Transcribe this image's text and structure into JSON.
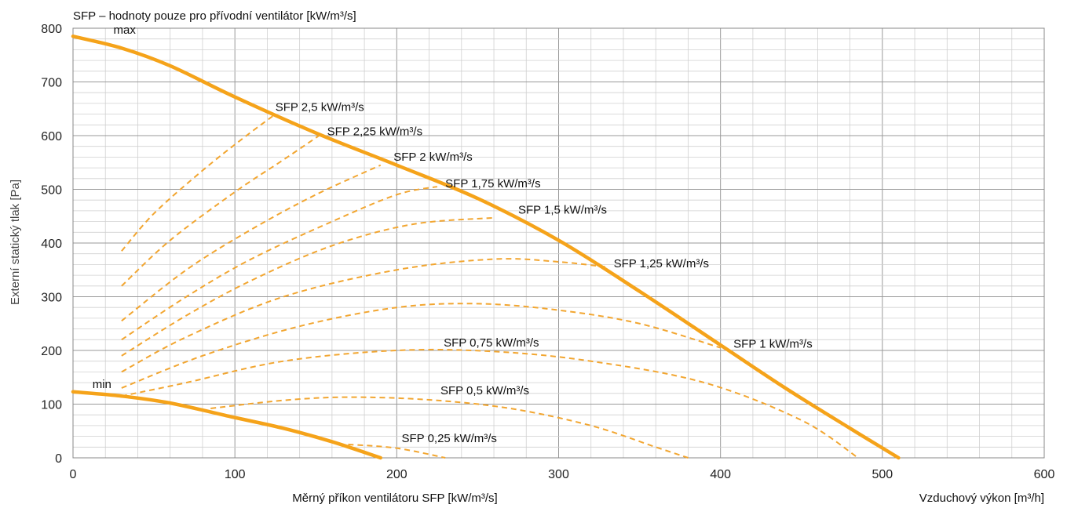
{
  "chart_data": {
    "type": "line",
    "title": "SFP – hodnoty pouze pro přívodní ventilátor [kW/m³/s]",
    "xlabel": "Měrný příkon ventilátoru SFP [kW/m³/s]",
    "xlabel_right": "Vzduchový výkon [m³/h]",
    "ylabel": "Externí statický tlak [Pa]",
    "xlim": [
      0,
      600
    ],
    "ylim": [
      0,
      800
    ],
    "x_ticks": [
      0,
      100,
      200,
      300,
      400,
      500,
      600
    ],
    "y_ticks": [
      0,
      100,
      200,
      300,
      400,
      500,
      600,
      700,
      800
    ],
    "minor_grid_x": 20,
    "minor_grid_y": 20,
    "grid": true,
    "colors": {
      "curve": "#F5A31A",
      "dashed": "#F2A631",
      "grid_major": "#999999",
      "grid_minor": "#d0d0d0"
    },
    "series": [
      {
        "name": "max",
        "style": "solid",
        "label_at": [
          25,
          790
        ],
        "points": [
          [
            0,
            785
          ],
          [
            30,
            763
          ],
          [
            60,
            730
          ],
          [
            100,
            672
          ],
          [
            150,
            605
          ],
          [
            200,
            545
          ],
          [
            250,
            483
          ],
          [
            300,
            405
          ],
          [
            350,
            310
          ],
          [
            400,
            210
          ],
          [
            440,
            130
          ],
          [
            480,
            55
          ],
          [
            510,
            0
          ]
        ]
      },
      {
        "name": "min",
        "style": "solid",
        "label_at": [
          12,
          130
        ],
        "points": [
          [
            0,
            123
          ],
          [
            30,
            115
          ],
          [
            60,
            102
          ],
          [
            100,
            75
          ],
          [
            130,
            55
          ],
          [
            160,
            30
          ],
          [
            190,
            0
          ]
        ]
      }
    ],
    "sfp_curves": [
      {
        "label": "SFP 2,5 kW/m³/s",
        "label_at": [
          125,
          646
        ],
        "points": [
          [
            30,
            385
          ],
          [
            50,
            455
          ],
          [
            80,
            535
          ],
          [
            105,
            595
          ],
          [
            125,
            640
          ]
        ]
      },
      {
        "label": "SFP 2,25 kW/m³/s",
        "label_at": [
          157,
          601
        ],
        "points": [
          [
            30,
            320
          ],
          [
            60,
            405
          ],
          [
            100,
            495
          ],
          [
            130,
            555
          ],
          [
            152,
            600
          ]
        ]
      },
      {
        "label": "SFP 2 kW/m³/s",
        "label_at": [
          198,
          553
        ],
        "points": [
          [
            30,
            255
          ],
          [
            70,
            350
          ],
          [
            110,
            425
          ],
          [
            150,
            490
          ],
          [
            190,
            545
          ]
        ]
      },
      {
        "label": "SFP 1,75 kW/m³/s",
        "label_at": [
          230,
          504
        ],
        "points": [
          [
            30,
            220
          ],
          [
            70,
            300
          ],
          [
            110,
            370
          ],
          [
            160,
            440
          ],
          [
            200,
            490
          ],
          [
            225,
            505
          ]
        ]
      },
      {
        "label": "SFP 1,5 kW/m³/s",
        "label_at": [
          275,
          455
        ],
        "points": [
          [
            30,
            190
          ],
          [
            70,
            265
          ],
          [
            110,
            330
          ],
          [
            160,
            395
          ],
          [
            210,
            435
          ],
          [
            260,
            447
          ]
        ]
      },
      {
        "label": "SFP 1,25 kW/m³/s",
        "label_at": [
          334,
          355
        ],
        "points": [
          [
            30,
            160
          ],
          [
            70,
            225
          ],
          [
            130,
            300
          ],
          [
            200,
            350
          ],
          [
            260,
            370
          ],
          [
            300,
            365
          ],
          [
            330,
            355
          ]
        ]
      },
      {
        "label": "SFP 1 kW/m³/s",
        "label_at": [
          408,
          205
        ],
        "points": [
          [
            30,
            130
          ],
          [
            80,
            190
          ],
          [
            140,
            245
          ],
          [
            200,
            280
          ],
          [
            250,
            287
          ],
          [
            300,
            275
          ],
          [
            350,
            250
          ],
          [
            400,
            205
          ]
        ]
      },
      {
        "label": "SFP 0,75 kW/m³/s",
        "label_at": [
          229,
          207
        ],
        "points": [
          [
            30,
            115
          ],
          [
            70,
            140
          ],
          [
            130,
            180
          ],
          [
            200,
            200
          ],
          [
            260,
            198
          ],
          [
            320,
            180
          ],
          [
            390,
            140
          ],
          [
            450,
            70
          ],
          [
            485,
            0
          ]
        ]
      },
      {
        "label": "SFP 0,5 kW/m³/s",
        "label_at": [
          227,
          118
        ],
        "points": [
          [
            85,
            92
          ],
          [
            130,
            107
          ],
          [
            170,
            113
          ],
          [
            220,
            108
          ],
          [
            270,
            92
          ],
          [
            320,
            60
          ],
          [
            360,
            20
          ],
          [
            380,
            0
          ]
        ]
      },
      {
        "label": "SFP 0,25 kW/m³/s",
        "label_at": [
          203,
          29
        ],
        "points": [
          [
            170,
            25
          ],
          [
            200,
            18
          ],
          [
            230,
            0
          ]
        ]
      }
    ]
  }
}
